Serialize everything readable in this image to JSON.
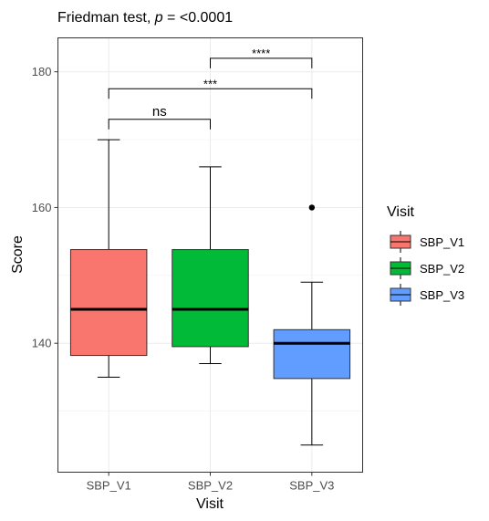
{
  "chart_data": {
    "type": "boxplot",
    "title": "Friedman test, ",
    "title_p": "p",
    "title_value": " = <0.0001",
    "xlabel": "Visit",
    "ylabel": "Score",
    "ylim": [
      121,
      185
    ],
    "yticks": [
      140,
      160,
      180
    ],
    "grid": true,
    "categories": [
      "SBP_V1",
      "SBP_V2",
      "SBP_V3"
    ],
    "boxes": [
      {
        "name": "SBP_V1",
        "min": 135,
        "q1": 138.2,
        "median": 145,
        "q3": 153.8,
        "max": 170,
        "outliers": [],
        "color": "#F8766D"
      },
      {
        "name": "SBP_V2",
        "min": 137,
        "q1": 139.5,
        "median": 145,
        "q3": 153.8,
        "max": 166,
        "outliers": [],
        "color": "#00BA38"
      },
      {
        "name": "SBP_V3",
        "min": 125,
        "q1": 134.8,
        "median": 140,
        "q3": 142,
        "max": 149,
        "outliers": [
          160
        ],
        "color": "#619CFF"
      }
    ],
    "comparisons": [
      {
        "from": 0,
        "to": 1,
        "label": "ns",
        "y": 173
      },
      {
        "from": 0,
        "to": 2,
        "label": "***",
        "y": 177.5
      },
      {
        "from": 1,
        "to": 2,
        "label": "****",
        "y": 182
      }
    ],
    "legend": {
      "title": "Visit",
      "position": "right",
      "items": [
        "SBP_V1",
        "SBP_V2",
        "SBP_V3"
      ]
    }
  }
}
